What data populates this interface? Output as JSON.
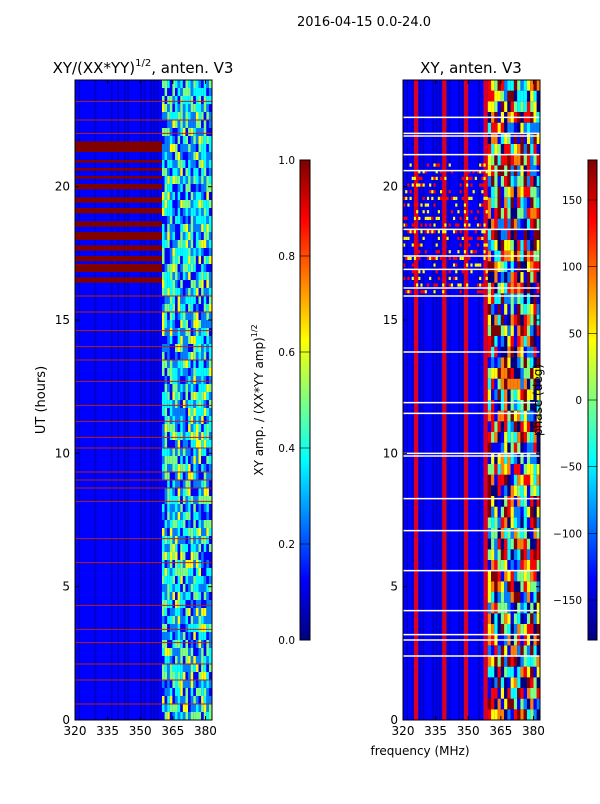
{
  "figure": {
    "suptitle": "2016-04-15 0.0-24.0",
    "xlabel_shared": "frequency (MHz)"
  },
  "colors": {
    "jet": [
      "#00007f",
      "#0000ff",
      "#007fff",
      "#00ffff",
      "#7fff7f",
      "#ffff00",
      "#ff7f00",
      "#ff0000",
      "#7f0000"
    ],
    "band_line": "#b22222",
    "white_gap": "#ffffff"
  },
  "chart_data": [
    {
      "type": "heatmap",
      "panel": "left",
      "title_main": "XY/(XX*YY)",
      "title_sup": "1/2",
      "title_tail": ", anten. V3",
      "xlabel": "",
      "ylabel": "UT (hours)",
      "xlim": [
        320,
        383
      ],
      "ylim": [
        0,
        24
      ],
      "xticks": [
        320,
        335,
        350,
        365,
        380
      ],
      "yticks": [
        0,
        5,
        10,
        15,
        20
      ],
      "active_band_mhz": [
        360,
        382
      ],
      "saturated_hours": [
        [
          21.3,
          21.7
        ],
        [
          20.9,
          21.0
        ],
        [
          20.6,
          20.7
        ],
        [
          20.3,
          20.4
        ],
        [
          19.9,
          20.1
        ],
        [
          19.4,
          19.6
        ],
        [
          19.0,
          19.2
        ],
        [
          18.5,
          18.7
        ],
        [
          18.0,
          18.3
        ],
        [
          17.6,
          17.8
        ],
        [
          17.2,
          17.4
        ],
        [
          16.8,
          17.1
        ],
        [
          16.4,
          16.6
        ]
      ],
      "band_lines_hours": [
        0.6,
        1.5,
        2.1,
        2.9,
        3.4,
        4.3,
        5.9,
        6.8,
        8.2,
        8.7,
        9.0,
        9.3,
        10.2,
        10.6,
        11.2,
        11.8,
        12.7,
        13.5,
        14.0,
        14.6,
        15.3,
        15.9,
        22.0,
        22.5,
        23.2
      ],
      "colorbar": {
        "label_main": "XY amp. / (XX*YY amp)",
        "label_sup": "1/2",
        "vmin": 0.0,
        "vmax": 1.0,
        "ticks": [
          "0.0",
          "0.2",
          "0.4",
          "0.6",
          "0.8",
          "1.0"
        ],
        "tick_values": [
          0.0,
          0.2,
          0.4,
          0.6,
          0.8,
          1.0
        ]
      }
    },
    {
      "type": "heatmap",
      "panel": "right",
      "title_main": "XY, anten. V3",
      "xlabel": "frequency (MHz)",
      "ylabel": "",
      "xlim": [
        320,
        383
      ],
      "ylim": [
        0,
        24
      ],
      "xticks": [
        320,
        335,
        350,
        365,
        380
      ],
      "yticks": [
        0,
        5,
        10,
        15,
        20
      ],
      "red_stripe_mhz": [
        325,
        338,
        348,
        357
      ],
      "noisy_hours": [
        [
          16.0,
          21.0
        ]
      ],
      "white_gap_hours": [
        2.4,
        3.0,
        3.2,
        4.1,
        5.6,
        7.1,
        8.3,
        9.9,
        10.0,
        11.5,
        11.9,
        13.8,
        15.9,
        16.2,
        16.9,
        17.4,
        18.4,
        20.6,
        21.2,
        21.9,
        22.0,
        22.6
      ],
      "colorbar": {
        "label_main": "phase (deg)",
        "vmin": -180,
        "vmax": 180,
        "ticks": [
          "−150",
          "−100",
          "−50",
          "0",
          "50",
          "100",
          "150"
        ],
        "tick_values": [
          -150,
          -100,
          -50,
          0,
          50,
          100,
          150
        ]
      }
    }
  ]
}
